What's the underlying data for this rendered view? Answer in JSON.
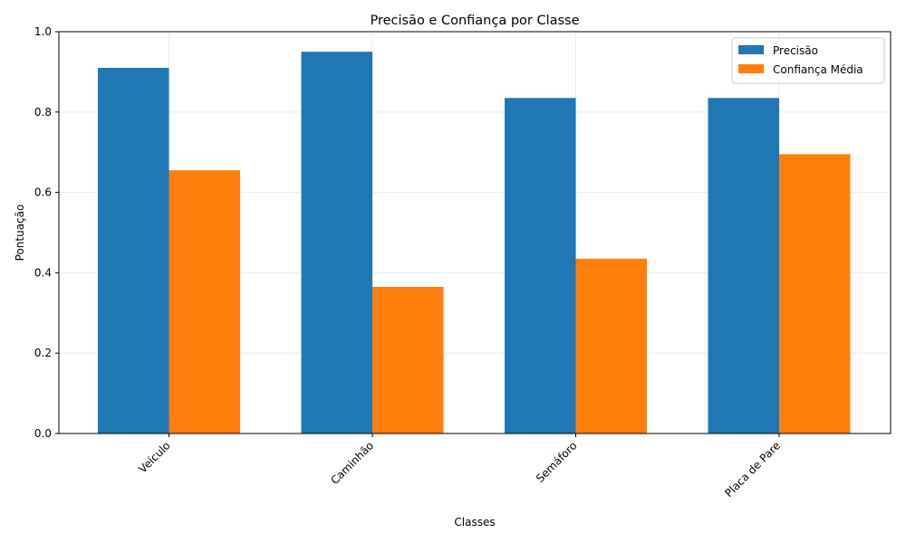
{
  "chart_data": {
    "type": "bar",
    "title": "Precisão e Confiança por Classe",
    "xlabel": "Classes",
    "ylabel": "Pontuação",
    "categories": [
      "Veículo",
      "Caminhão",
      "Semáforo",
      "Placa de Pare"
    ],
    "series": [
      {
        "name": "Precisão",
        "color": "#1f77b4",
        "values": [
          0.91,
          0.95,
          0.835,
          0.835
        ]
      },
      {
        "name": "Confiança Média",
        "color": "#ff7f0e",
        "values": [
          0.655,
          0.365,
          0.435,
          0.695
        ]
      }
    ],
    "ylim": [
      0,
      1
    ],
    "yticks": [
      "0.0",
      "0.2",
      "0.4",
      "0.6",
      "0.8",
      "1.0"
    ],
    "grid": true,
    "legend_position": "top-right",
    "xtick_rotation": "45 degrees"
  }
}
